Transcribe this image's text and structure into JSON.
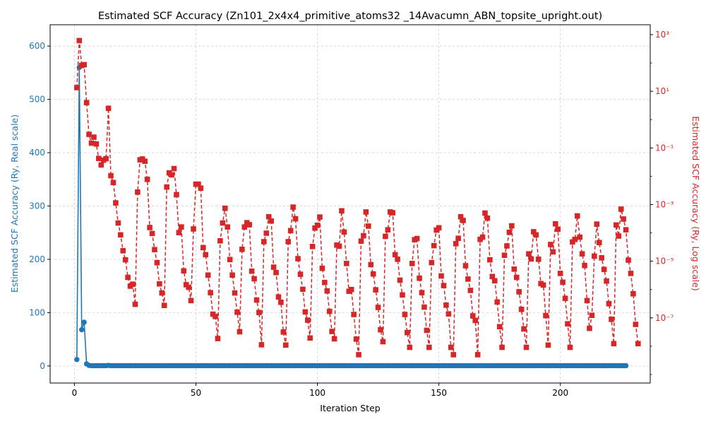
{
  "chart_data": {
    "type": "line",
    "title": "Estimated SCF Accuracy (Zn101_2x4x4_primitive_atoms32 _14Avacumn_ABN_topsite_upright.out)",
    "xlabel": "Iteration Step",
    "ylabel_left": "Estimated SCF Accuracy (Ry, Real scale)",
    "ylabel_right": "Estimated SCF Accuracy (Ry, Log scale)",
    "xlim": [
      -10,
      237
    ],
    "ylim_left": [
      -32,
      640
    ],
    "ylim_right_log10": [
      -9.3,
      3.35
    ],
    "x_ticks": [
      0,
      50,
      100,
      150,
      200
    ],
    "y_ticks_left": [
      0,
      100,
      200,
      300,
      400,
      500,
      600
    ],
    "y_ticks_right": [
      {
        "exp": 3,
        "label": "10³"
      },
      {
        "exp": 1,
        "label": "10¹"
      },
      {
        "exp": -1,
        "label": "10⁻¹"
      },
      {
        "exp": -3,
        "label": "10⁻³"
      },
      {
        "exp": -5,
        "label": "10⁻⁵"
      },
      {
        "exp": -7,
        "label": "10⁻⁷"
      }
    ],
    "grid": true,
    "colors": {
      "left": "#1f77b4",
      "right": "#d62728",
      "grid": "#d0d0d0"
    },
    "series": [
      {
        "axis": "left",
        "style": "solid line with circle markers",
        "first_points": [
          [
            1,
            12
          ],
          [
            2,
            560
          ],
          [
            3,
            68
          ],
          [
            4,
            82
          ],
          [
            5,
            4
          ],
          [
            6,
            1
          ],
          [
            14,
            1
          ]
        ],
        "tail_value": 0.5,
        "x_last": 227
      },
      {
        "axis": "right",
        "style": "dashed line with square markers",
        "x_start": 1,
        "log10_values": [
          1.13,
          2.79,
          1.91,
          1.94,
          0.6,
          -0.52,
          -0.83,
          -0.62,
          -0.86,
          -1.37,
          -1.6,
          -1.43,
          -1.38,
          0.4,
          -1.98,
          -2.22,
          -2.94,
          -3.65,
          -4.07,
          -4.63,
          -4.95,
          -5.57,
          -5.88,
          -5.81,
          -6.52,
          -2.56,
          -1.42,
          -1.39,
          -1.47,
          -2.11,
          -3.81,
          -4.02,
          -4.59,
          -5.05,
          -5.8,
          -6.12,
          -6.56,
          -2.38,
          -1.88,
          -1.95,
          -1.73,
          -2.65,
          -3.99,
          -3.79,
          -5.34,
          -5.83,
          -5.92,
          -6.39,
          -3.86,
          -2.28,
          -2.28,
          -2.42,
          -4.52,
          -4.77,
          -5.49,
          -6.11,
          -6.87,
          -6.95,
          -7.73,
          -4.28,
          -3.65,
          -3.13,
          -3.79,
          -4.94,
          -5.49,
          -6.12,
          -6.8,
          -7.49,
          -4.58,
          -3.79,
          -3.64,
          -3.71,
          -5.35,
          -5.62,
          -6.37,
          -6.81,
          -7.95,
          -4.31,
          -4.01,
          -3.43,
          -3.58,
          -5.21,
          -5.4,
          -6.26,
          -6.45,
          -7.5,
          -7.96,
          -4.31,
          -3.92,
          -3.09,
          -3.5,
          -4.91,
          -5.46,
          -5.99,
          -6.79,
          -7.08,
          -7.71,
          -4.48,
          -3.83,
          -3.73,
          -3.44,
          -5.25,
          -5.75,
          -6.05,
          -6.77,
          -7.48,
          -7.74,
          -4.43,
          -4.47,
          -3.22,
          -3.97,
          -5.08,
          -6.06,
          -6.0,
          -6.88,
          -7.75,
          -8.3,
          -4.29,
          -4.1,
          -3.26,
          -3.76,
          -5.12,
          -5.45,
          -6.01,
          -6.63,
          -7.42,
          -7.84,
          -4.12,
          -3.89,
          -3.26,
          -3.29,
          -4.77,
          -4.93,
          -5.67,
          -6.19,
          -6.88,
          -7.52,
          -8.04,
          -5.08,
          -4.24,
          -4.2,
          -5.6,
          -6.11,
          -6.62,
          -7.44,
          -8.04,
          -5.05,
          -4.45,
          -3.9,
          -3.82,
          -5.52,
          -5.86,
          -6.55,
          -6.86,
          -8.04,
          -8.3,
          -4.38,
          -4.19,
          -3.43,
          -3.56,
          -5.16,
          -5.63,
          -6.03,
          -6.93,
          -7.09,
          -8.3,
          -4.23,
          -4.15,
          -3.3,
          -3.48,
          -4.95,
          -5.54,
          -5.69,
          -6.44,
          -7.31,
          -8.04,
          -4.79,
          -4.46,
          -3.98,
          -3.75,
          -5.28,
          -5.57,
          -6.08,
          -6.7,
          -7.39,
          -8.04,
          -4.74,
          -4.92,
          -3.96,
          -4.07,
          -4.93,
          -5.79,
          -5.84,
          -6.92,
          -7.96,
          -4.41,
          -4.67,
          -3.68,
          -3.87,
          -5.43,
          -5.74,
          -6.31,
          -7.21,
          -8.04,
          -4.32,
          -4.23,
          -3.4,
          -4.15,
          -4.74,
          -5.15,
          -6.39,
          -7.37,
          -6.91,
          -4.82,
          -3.69,
          -4.34,
          -4.88,
          -5.29,
          -5.7,
          -6.5,
          -7.05,
          -7.91,
          -3.72,
          -4.11,
          -3.16,
          -3.51,
          -3.89,
          -4.96,
          -5.43,
          -6.15,
          -7.23,
          -7.91
        ]
      }
    ]
  }
}
